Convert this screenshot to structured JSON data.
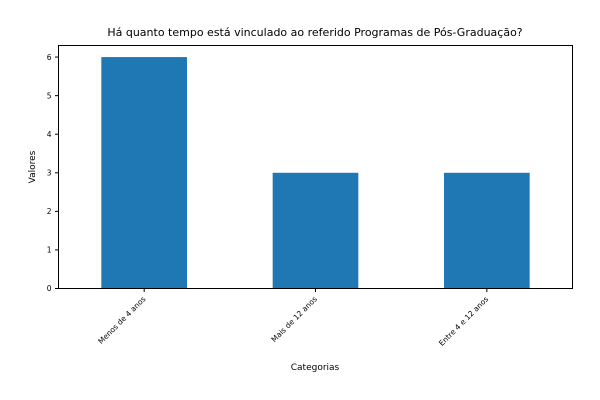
{
  "chart_data": {
    "type": "bar",
    "title": "Há quanto tempo está vinculado ao referido Programas de Pós-Graduação?",
    "xlabel": "Categorias",
    "ylabel": "Valores",
    "categories": [
      "Menos de 4 anos",
      "Mais de 12 anos",
      "Entre 4 e 12 anos"
    ],
    "values": [
      6,
      3,
      3
    ],
    "ylim": [
      0,
      6.3
    ],
    "yticks": [
      0,
      1,
      2,
      3,
      4,
      5,
      6
    ],
    "grid": false,
    "legend": "none",
    "bar_color": "#1f77b4"
  }
}
